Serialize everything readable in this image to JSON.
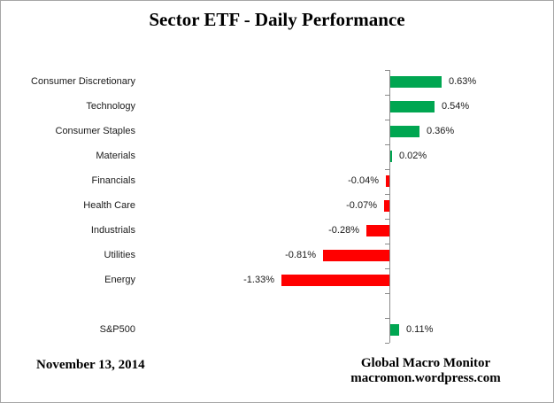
{
  "title": "Sector ETF - Daily Performance",
  "chart_data": {
    "type": "bar",
    "orientation": "horizontal",
    "title": "Sector ETF - Daily Performance",
    "categories": [
      "Consumer Discretionary",
      "Technology",
      "Consumer Staples",
      "Materials",
      "Financials",
      "Health Care",
      "Industrials",
      "Utilities",
      "Energy",
      "S&P500"
    ],
    "values": [
      0.63,
      0.54,
      0.36,
      0.02,
      -0.04,
      -0.07,
      -0.28,
      -0.81,
      -1.33,
      0.11
    ],
    "labels": [
      "0.63%",
      "0.54%",
      "0.36%",
      "0.02%",
      "-0.04%",
      "-0.07%",
      "-0.28%",
      "-0.81%",
      "-1.33%",
      "0.11%"
    ],
    "slots": [
      0,
      1,
      2,
      3,
      4,
      5,
      6,
      7,
      8,
      10
    ],
    "slot_count": 11,
    "xlabel": "",
    "ylabel": "",
    "legend": "none",
    "grid": "off",
    "colors": {
      "positive": "#00A651",
      "negative": "#FF0000",
      "axis": "#8A8A8A"
    }
  },
  "footer": {
    "date": "November 13, 2014",
    "source_line1": "Global Macro Monitor",
    "source_line2": "macromon.wordpress.com"
  }
}
